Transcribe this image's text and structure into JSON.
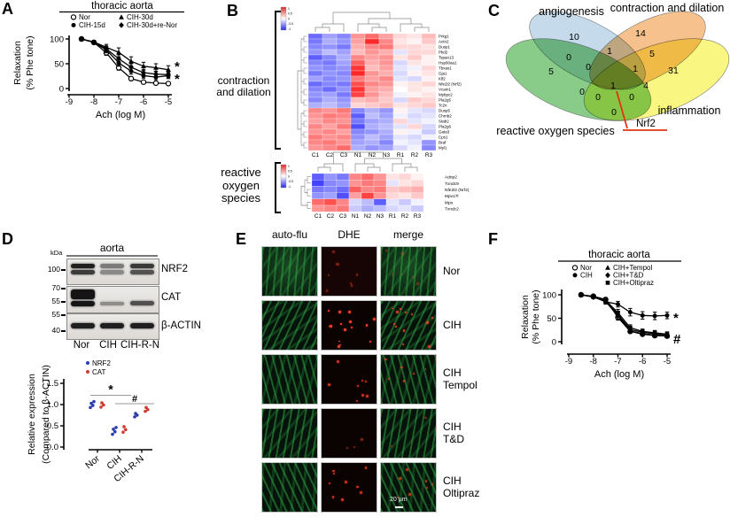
{
  "panels": {
    "A": {
      "letter": "A"
    },
    "B": {
      "letter": "B"
    },
    "C": {
      "letter": "C"
    },
    "D": {
      "letter": "D",
      "blot": {
        "kda": "kDa",
        "tissue": "aorta",
        "lanes": [
          "Nor",
          "CIH",
          "CIH-R-N"
        ],
        "strips": [
          {
            "protein": "NRF2",
            "markers": [
              {
                "label": "100"
              }
            ],
            "pattern": "doublet",
            "intensities": [
              0.95,
              0.5,
              0.82
            ]
          },
          {
            "protein": "CAT",
            "markers": [
              {
                "label": "70"
              },
              {
                "label": "55"
              }
            ],
            "pattern": "cat",
            "intensities": [
              1.0,
              0.4,
              0.7
            ]
          },
          {
            "protein": "β-ACTIN",
            "markers": [
              {
                "label": "55"
              },
              {
                "label": "40"
              }
            ],
            "pattern": "single",
            "intensities": [
              0.95,
              0.95,
              0.95
            ]
          }
        ]
      }
    },
    "E": {
      "letter": "E",
      "columns": [
        "auto-flu",
        "DHE",
        "merge"
      ],
      "rows": [
        {
          "lines": [
            "Nor"
          ],
          "dots": 7,
          "dot_alpha": 0.45
        },
        {
          "lines": [
            "CIH"
          ],
          "dots": 15,
          "dot_alpha": 1.0
        },
        {
          "lines": [
            "CIH",
            "Tempol"
          ],
          "dots": 8,
          "dot_alpha": 0.8
        },
        {
          "lines": [
            "CIH",
            "T&D"
          ],
          "dots": 3,
          "dot_alpha": 0.5
        },
        {
          "lines": [
            "CIH",
            "Oltipraz"
          ],
          "dots": 9,
          "dot_alpha": 0.8
        }
      ],
      "scale_bar": "20 µm"
    },
    "F": {
      "letter": "F"
    }
  },
  "chart_data": [
    {
      "panel": "A",
      "type": "line",
      "title": "thoracic aorta",
      "xlabel": "Ach (log M)",
      "ylabel": [
        "Relaxation",
        "(% Phe tone)"
      ],
      "x": [
        -8.5,
        -8,
        -7.5,
        -7,
        -6.5,
        -6,
        -5.5,
        -5
      ],
      "xticks": [
        "-9",
        "-8",
        "-7",
        "-6",
        "-5"
      ],
      "yticks": [
        "0",
        "50",
        "100"
      ],
      "xlim": [
        -9,
        -5
      ],
      "ylim": [
        0,
        110
      ],
      "grid": false,
      "legend_position": "top",
      "series": [
        {
          "name": "Nor",
          "marker": "circle-open",
          "values": [
            100,
            93,
            72,
            42,
            20,
            13,
            11,
            10
          ],
          "err": [
            2,
            3,
            5,
            5,
            4,
            3,
            3,
            3
          ]
        },
        {
          "name": "CIH-15d",
          "marker": "circle-filled",
          "values": [
            100,
            93,
            78,
            52,
            35,
            26,
            23,
            26
          ],
          "err": [
            2,
            3,
            6,
            7,
            6,
            5,
            5,
            6
          ]
        },
        {
          "name": "CIH-30d",
          "marker": "triangle-filled",
          "values": [
            100,
            94,
            83,
            73,
            55,
            45,
            42,
            38
          ],
          "err": [
            2,
            3,
            6,
            9,
            9,
            8,
            8,
            8
          ]
        },
        {
          "name": "CIH-30d+re-Nor",
          "marker": "diamond-filled",
          "values": [
            100,
            93,
            80,
            60,
            43,
            32,
            29,
            28
          ],
          "err": [
            2,
            3,
            6,
            8,
            7,
            6,
            6,
            6
          ]
        }
      ],
      "annotations": [
        {
          "text": "*"
        },
        {
          "text": "*"
        }
      ]
    },
    {
      "panel": "B",
      "type": "heatmap",
      "group": "contraction and dilation",
      "columns": [
        "C1",
        "C2",
        "C3",
        "N1",
        "N2",
        "N3",
        "R1",
        "R2",
        "R3"
      ],
      "colorkey_ticks": [
        "1",
        "0.5",
        "0",
        "-0.5",
        "-1"
      ],
      "genes": [
        "Prkg1",
        "Actn2",
        "Dusp1",
        "Pkd2",
        "Tspan13",
        "Hsp90aa1",
        "Tbxas1",
        "Gja1",
        "Klf2",
        "Nfe2l2 (Nrf2)",
        "Vcam1",
        "Mybpc2",
        "Pla2g5",
        "Tc2n",
        "Dusp5",
        "Chrnb2",
        "Stab2",
        "Pla2g6",
        "Gata3",
        "Cps1",
        "Braf",
        "Myl1"
      ],
      "values": [
        [
          -1.1,
          -0.7,
          -0.9,
          0.8,
          1.1,
          0.7,
          0.3,
          0.2,
          0.5
        ],
        [
          -1.0,
          -0.6,
          -0.8,
          0.7,
          1.6,
          0.9,
          0.2,
          0.1,
          0.4
        ],
        [
          -0.9,
          -0.8,
          -1.0,
          0.6,
          0.9,
          1.0,
          0.3,
          0.3,
          0.2
        ],
        [
          -0.8,
          -0.5,
          -0.7,
          0.5,
          0.8,
          0.6,
          -0.2,
          0.3,
          0.3
        ],
        [
          -1.2,
          -0.9,
          -0.6,
          0.9,
          0.7,
          0.8,
          0.2,
          0.4,
          0.1
        ],
        [
          -0.9,
          -1.0,
          -0.7,
          1.2,
          0.6,
          0.8,
          -0.3,
          0.2,
          0.1
        ],
        [
          -0.8,
          -0.9,
          -0.8,
          1.5,
          0.5,
          0.7,
          -0.2,
          -0.1,
          0.3
        ],
        [
          -1.0,
          -0.8,
          -0.9,
          1.6,
          0.8,
          0.6,
          -0.3,
          0.1,
          0.2
        ],
        [
          -0.7,
          -0.9,
          -0.8,
          1.0,
          0.7,
          0.9,
          -0.2,
          -0.3,
          0.1
        ],
        [
          -1.1,
          -0.9,
          -1.0,
          1.3,
          0.9,
          0.8,
          0.1,
          0.2,
          0.3
        ],
        [
          -0.9,
          -1.1,
          -0.8,
          1.5,
          0.7,
          0.6,
          0.0,
          0.2,
          0.1
        ],
        [
          -0.8,
          -0.7,
          -1.0,
          1.4,
          0.8,
          0.5,
          -0.1,
          0.1,
          0.2
        ],
        [
          -0.9,
          -0.6,
          -0.8,
          0.5,
          0.6,
          0.4,
          -0.3,
          0.4,
          0.3
        ],
        [
          -0.6,
          -0.5,
          -0.7,
          0.3,
          0.4,
          0.5,
          0.2,
          0.3,
          0.4
        ],
        [
          0.9,
          0.8,
          1.0,
          -0.9,
          -0.6,
          -0.8,
          0.1,
          -0.2,
          -0.3
        ],
        [
          0.8,
          1.0,
          0.9,
          -1.2,
          -0.5,
          -0.7,
          -0.1,
          -0.3,
          -0.2
        ],
        [
          0.7,
          0.9,
          0.8,
          -1.0,
          -0.7,
          -0.6,
          0.3,
          -0.2,
          -0.1
        ],
        [
          0.9,
          0.7,
          1.0,
          -1.3,
          -0.6,
          -0.5,
          -0.2,
          0.3,
          -0.3
        ],
        [
          0.8,
          0.9,
          0.7,
          -0.9,
          -0.8,
          -0.6,
          0.1,
          -0.1,
          -0.4
        ],
        [
          1.0,
          0.8,
          0.9,
          -0.8,
          -0.5,
          -0.7,
          -0.2,
          -0.3,
          -0.1
        ],
        [
          0.9,
          1.0,
          0.8,
          -0.7,
          -0.6,
          -0.9,
          -0.1,
          -0.2,
          -0.8
        ],
        [
          0.8,
          0.9,
          1.1,
          -0.6,
          -0.8,
          -0.7,
          -0.3,
          -0.1,
          -0.9
        ]
      ]
    },
    {
      "panel": "B",
      "type": "heatmap",
      "group": "reactive oxygen species",
      "columns": [
        "C1",
        "C2",
        "C3",
        "N1",
        "N2",
        "N3",
        "R1",
        "R2",
        "R3"
      ],
      "colorkey_ticks": [
        "1",
        "0.5",
        "0",
        "-0.5",
        "-1"
      ],
      "genes": [
        "Adnp2",
        "Txndc9",
        "Nfe2l2 (Nrf2)",
        "Mpv17l",
        "Mpo",
        "Txndc2"
      ],
      "values": [
        [
          -1.2,
          -0.8,
          -1.0,
          0.9,
          1.1,
          0.8,
          0.2,
          0.3,
          0.1
        ],
        [
          -1.4,
          -0.9,
          -0.8,
          0.8,
          1.0,
          0.9,
          -0.2,
          0.2,
          0.3
        ],
        [
          -1.0,
          -0.9,
          -1.1,
          1.2,
          0.9,
          1.0,
          0.4,
          0.5,
          0.6
        ],
        [
          -0.8,
          -0.7,
          -1.3,
          0.7,
          1.4,
          0.8,
          0.3,
          0.2,
          0.4
        ],
        [
          1.1,
          1.3,
          0.9,
          -0.3,
          -0.5,
          -1.2,
          -0.2,
          -0.4,
          -0.1
        ],
        [
          0.8,
          0.9,
          1.0,
          -0.4,
          -0.6,
          -0.5,
          -0.3,
          -0.2,
          -0.4
        ]
      ]
    },
    {
      "panel": "C",
      "type": "venn",
      "sets": [
        {
          "name": "angiogenesis",
          "color": "#aecde3"
        },
        {
          "name": "contraction and dilation",
          "color": "#f3a95f"
        },
        {
          "name": "inflammation",
          "color": "#f6f351"
        },
        {
          "name": "reactive oxygen species",
          "color": "#5cb85c"
        }
      ],
      "regions": [
        {
          "sets": "angiogenesis",
          "value": 10,
          "x": 103,
          "y": 45
        },
        {
          "sets": "contraction and dilation",
          "value": 14,
          "x": 178,
          "y": 41
        },
        {
          "sets": "angiogenesis+reactive oxygen species",
          "value": 0,
          "x": 97,
          "y": 68
        },
        {
          "sets": "angiogenesis+contraction and dilation",
          "value": 1,
          "x": 143,
          "y": 61
        },
        {
          "sets": "contraction and dilation+inflammation",
          "value": 5,
          "x": 191,
          "y": 64
        },
        {
          "sets": "reactive oxygen species",
          "value": 5,
          "x": 77,
          "y": 84
        },
        {
          "sets": "angiogenesis+contraction and dilation+reactive oxygen species",
          "value": 0,
          "x": 119,
          "y": 79
        },
        {
          "sets": "angiogenesis+contraction and dilation+inflammation",
          "value": 1,
          "x": 172,
          "y": 81
        },
        {
          "sets": "inflammation",
          "value": 31,
          "x": 215,
          "y": 83
        },
        {
          "sets": "all four",
          "value": 1,
          "x": 147,
          "y": 100
        },
        {
          "sets": "reactive oxygen species+contraction and dilation",
          "value": 0,
          "x": 112,
          "y": 107
        },
        {
          "sets": "reactive oxygen species+contraction and dilation+inflammation",
          "value": 0,
          "x": 130,
          "y": 113
        },
        {
          "sets": "reactive oxygen species+inflammation+angiogenesis",
          "value": 0,
          "x": 168,
          "y": 113
        },
        {
          "sets": "reactive oxygen species+inflammation",
          "value": 4,
          "x": 184,
          "y": 100
        },
        {
          "sets": "reactive oxygen species+inflammation bottom",
          "value": 0,
          "x": 148,
          "y": 130
        }
      ],
      "highlight": {
        "text": "Nrf2",
        "line_color": "#e23210"
      }
    },
    {
      "panel": "D",
      "type": "scatter",
      "ylabel": [
        "Relative expression",
        "(Compared to β-ACTIN)"
      ],
      "categories": [
        "Nor",
        "CIH",
        "CIH-R-N"
      ],
      "yticks": [
        "0.0",
        "0.5",
        "1.0",
        "1.5"
      ],
      "ylim": [
        0,
        1.6
      ],
      "series": [
        {
          "name": "NRF2",
          "color": "#2b3bb0",
          "points": [
            [
              0.93,
              0.98,
              1.03,
              1.07
            ],
            [
              0.3,
              0.36,
              0.42,
              0.46
            ],
            [
              0.71,
              0.75,
              0.79
            ]
          ]
        },
        {
          "name": "CAT",
          "color": "#d23a30",
          "points": [
            [
              0.94,
              0.99,
              1.04
            ],
            [
              0.35,
              0.41,
              0.48
            ],
            [
              0.84,
              0.88,
              0.93
            ]
          ]
        }
      ],
      "annotations": [
        {
          "text": "*",
          "between": [
            "Nor",
            "CIH"
          ],
          "value": 1.22
        },
        {
          "text": "#",
          "between": [
            "CIH",
            "CIH-R-N"
          ],
          "value": 1.02
        }
      ]
    },
    {
      "panel": "F",
      "type": "line",
      "title": "thoracic aorta",
      "xlabel": "Ach (log M)",
      "ylabel": [
        "Relaxation",
        "(% Phe tone)"
      ],
      "x": [
        -8.5,
        -8,
        -7.5,
        -7,
        -6.5,
        -6,
        -5.5,
        -5
      ],
      "xticks": [
        "-9",
        "-8",
        "-7",
        "-6",
        "-5"
      ],
      "yticks": [
        "0",
        "50",
        "100"
      ],
      "xlim": [
        -9,
        -5
      ],
      "ylim": [
        0,
        110
      ],
      "grid": false,
      "legend_position": "top",
      "series": [
        {
          "name": "Nor",
          "marker": "circle-open",
          "values": [
            100,
            97,
            90,
            52,
            22,
            16,
            13,
            12
          ],
          "err": [
            2,
            2,
            4,
            6,
            4,
            3,
            3,
            3
          ]
        },
        {
          "name": "CIH",
          "marker": "circle-filled",
          "values": [
            100,
            96,
            85,
            80,
            63,
            56,
            55,
            56
          ],
          "err": [
            2,
            3,
            5,
            6,
            8,
            8,
            8,
            7
          ]
        },
        {
          "name": "CIH+Tempol",
          "marker": "triangle-filled",
          "values": [
            100,
            96,
            87,
            58,
            26,
            20,
            17,
            15
          ],
          "err": [
            2,
            3,
            5,
            7,
            6,
            5,
            4,
            4
          ]
        },
        {
          "name": "CIH+T&D",
          "marker": "diamond-filled",
          "values": [
            100,
            95,
            86,
            55,
            23,
            17,
            14,
            13
          ],
          "err": [
            2,
            3,
            5,
            7,
            5,
            4,
            4,
            4
          ]
        },
        {
          "name": "CIH+Oltipraz",
          "marker": "square-filled",
          "values": [
            100,
            96,
            88,
            62,
            30,
            22,
            19,
            16
          ],
          "err": [
            2,
            3,
            5,
            7,
            6,
            5,
            5,
            5
          ]
        }
      ],
      "annotations": [
        {
          "text": "*"
        },
        {
          "text": "#"
        }
      ]
    }
  ]
}
